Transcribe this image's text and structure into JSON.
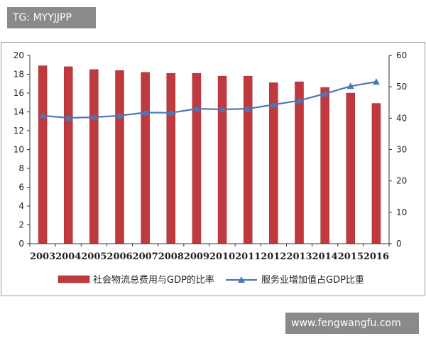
{
  "watermark_top": "TG: MYYJJPP",
  "watermark_bottom": "www.fengwangfu.com",
  "colors": {
    "bar": "#C0393E",
    "bar_edge": "#9a2a2e",
    "line": "#4a78b5",
    "axis": "#333333",
    "frame": "#9a9a9a"
  },
  "chart_data": {
    "type": "bar",
    "categories": [
      "2003",
      "2004",
      "2005",
      "2006",
      "2007",
      "2008",
      "2009",
      "2010",
      "2011",
      "2012",
      "2013",
      "2014",
      "2015",
      "2016"
    ],
    "series": [
      {
        "name": "社会物流总费用与GDP的比率",
        "type": "bar",
        "axis": "left",
        "values": [
          18.9,
          18.8,
          18.5,
          18.4,
          18.2,
          18.1,
          18.1,
          17.8,
          17.8,
          17.1,
          17.2,
          16.6,
          16.0,
          14.9
        ]
      },
      {
        "name": "服务业增加值占GDP比重",
        "type": "line",
        "axis": "right",
        "values": [
          40.8,
          40.1,
          40.3,
          40.8,
          41.8,
          41.7,
          43.0,
          42.8,
          43.0,
          44.3,
          45.6,
          47.8,
          50.2,
          51.6
        ]
      }
    ],
    "y_left": {
      "ylim": [
        0,
        20
      ],
      "ticks": [
        "0",
        "2",
        "4",
        "6",
        "8",
        "10",
        "12",
        "14",
        "16",
        "18",
        "20"
      ]
    },
    "y_right": {
      "ylim": [
        0,
        60
      ],
      "ticks": [
        "0",
        "10",
        "20",
        "30",
        "40",
        "50",
        "60"
      ]
    },
    "legend_position": "bottom",
    "grid": false
  }
}
